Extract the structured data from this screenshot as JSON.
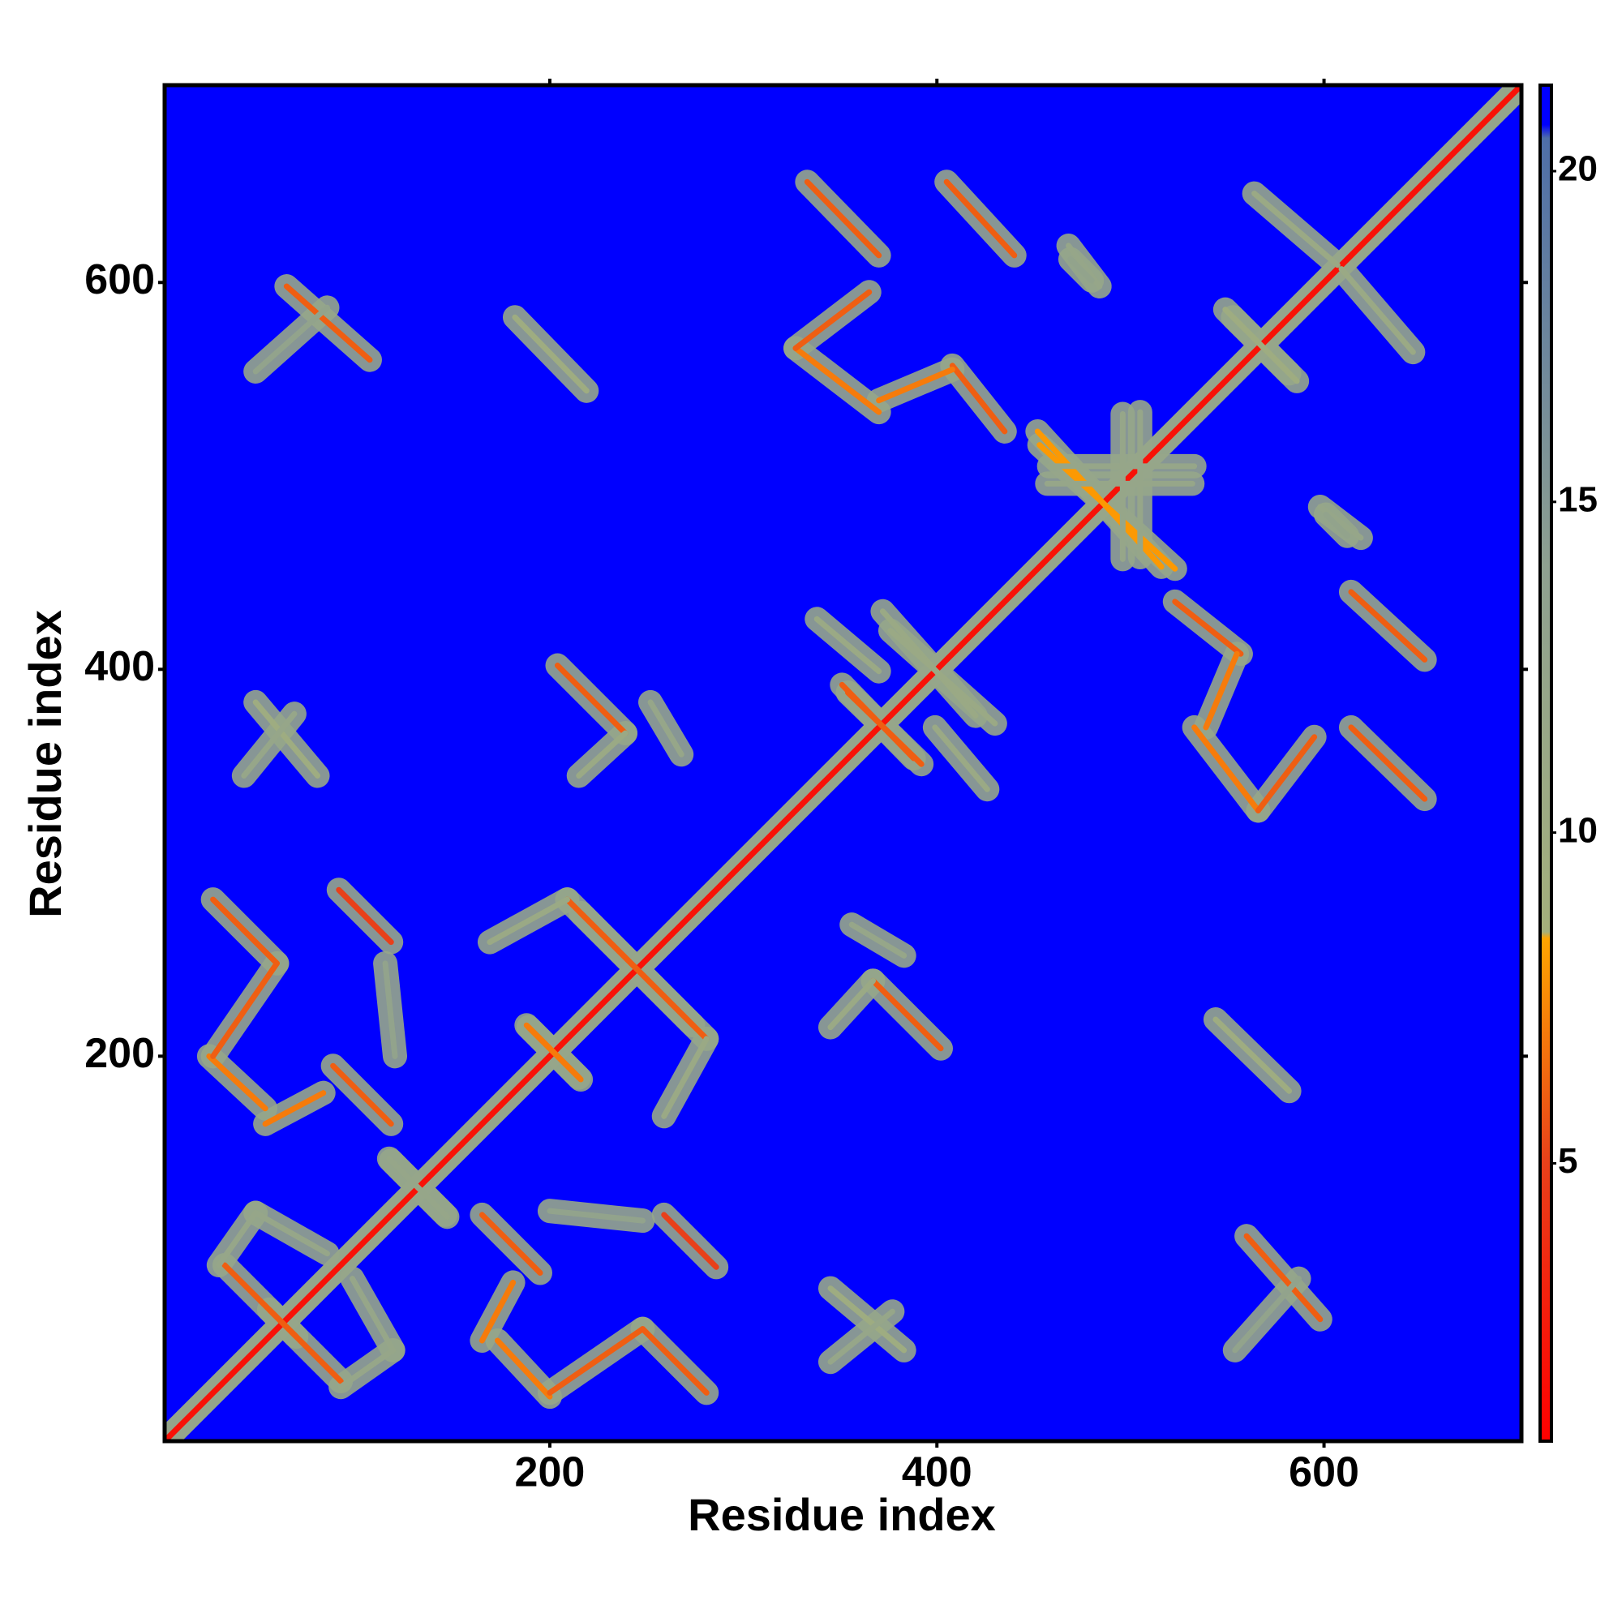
{
  "chart_data": {
    "type": "contact_map",
    "x_label": "Residue index",
    "y_label": "Residue index",
    "xlim": [
      1,
      702
    ],
    "ylim": [
      1,
      702
    ],
    "xticks": [
      200,
      400,
      600
    ],
    "yticks": [
      200,
      400,
      600
    ],
    "clim": [
      0.8,
      21.3
    ],
    "cticks": [
      5,
      10,
      15,
      20
    ],
    "colorscale": [
      [
        0.8,
        "#ff0000"
      ],
      [
        5,
        "#e8401a"
      ],
      [
        8.4,
        "#ffa500"
      ],
      [
        8.5,
        "#a4b07c"
      ],
      [
        14,
        "#8ea090"
      ],
      [
        20.5,
        "#4e6ea8"
      ],
      [
        20.7,
        "#0000ff"
      ],
      [
        21.3,
        "#0000ff"
      ]
    ],
    "symmetric": true,
    "edge_value": 12,
    "contacts": [
      {
        "x": [
          1,
          702
        ],
        "y": [
          1,
          702
        ],
        "value": 2
      },
      {
        "x": [
          165,
          195
        ],
        "y": [
          118,
          88
        ],
        "value": 6
      },
      {
        "x": [
          181,
          165
        ],
        "y": [
          83,
          53
        ],
        "value": 7
      },
      {
        "x": [
          173,
          200
        ],
        "y": [
          53,
          24
        ],
        "value": 7
      },
      {
        "x": [
          200,
          248
        ],
        "y": [
          26,
          59
        ],
        "value": 6
      },
      {
        "x": [
          248,
          281
        ],
        "y": [
          59,
          26
        ],
        "value": 6
      },
      {
        "x": [
          259,
          286
        ],
        "y": [
          118,
          91
        ],
        "value": 5
      },
      {
        "x": [
          200,
          248
        ],
        "y": [
          120,
          115
        ],
        "value": 13
      },
      {
        "x": [
          345,
          383
        ],
        "y": [
          80,
          48
        ],
        "value": 10
      },
      {
        "x": [
          345,
          377
        ],
        "y": [
          42,
          68
        ],
        "value": 12
      },
      {
        "x": [
          55,
          92
        ],
        "y": [
          69,
          32
        ],
        "value": 6
      },
      {
        "x": [
          98,
          119
        ],
        "y": [
          85,
          48
        ],
        "value": 12
      },
      {
        "x": [
          92,
          119
        ],
        "y": [
          29,
          48
        ],
        "value": 12
      },
      {
        "x": [
          117,
          146
        ],
        "y": [
          147,
          118
        ],
        "value": 12
      },
      {
        "x": [
          216,
          281
        ],
        "y": [
          274,
          209
        ],
        "value": 6
      },
      {
        "x": [
          281,
          259
        ],
        "y": [
          209,
          169
        ],
        "value": 11
      },
      {
        "x": [
          189,
          216
        ],
        "y": [
          215,
          188
        ],
        "value": 7
      },
      {
        "x": [
          367,
          402
        ],
        "y": [
          239,
          204
        ],
        "value": 6
      },
      {
        "x": [
          356,
          383
        ],
        "y": [
          268,
          252
        ],
        "value": 12
      },
      {
        "x": [
          345,
          367
        ],
        "y": [
          215,
          239
        ],
        "value": 11
      },
      {
        "x": [
          351,
          388
        ],
        "y": [
          392,
          354
        ],
        "value": 6
      },
      {
        "x": [
          399,
          426
        ],
        "y": [
          370,
          338
        ],
        "value": 11
      },
      {
        "x": [
          372,
          420
        ],
        "y": [
          430,
          376
        ],
        "value": 11
      },
      {
        "x": [
          544,
          582
        ],
        "y": [
          219,
          182
        ],
        "value": 10
      },
      {
        "x": [
          560,
          598
        ],
        "y": [
          107,
          64
        ],
        "value": 6
      },
      {
        "x": [
          554,
          587
        ],
        "y": [
          48,
          85
        ],
        "value": 13
      },
      {
        "x": [
          523,
          557
        ],
        "y": [
          435,
          408
        ],
        "value": 6
      },
      {
        "x": [
          555,
          539
        ],
        "y": [
          408,
          370
        ],
        "value": 7
      },
      {
        "x": [
          533,
          566
        ],
        "y": [
          370,
          327
        ],
        "value": 7
      },
      {
        "x": [
          566,
          595
        ],
        "y": [
          327,
          365
        ],
        "value": 6
      },
      {
        "x": [
          614,
          652
        ],
        "y": [
          440,
          405
        ],
        "value": 6
      },
      {
        "x": [
          614,
          652
        ],
        "y": [
          370,
          333
        ],
        "value": 6
      },
      {
        "x": [
          453,
          523
        ],
        "y": [
          516,
          452
        ],
        "value": 8
      },
      {
        "x": [
          458,
          533
        ],
        "y": [
          505,
          505
        ],
        "value": 12
      },
      {
        "x": [
          496,
          496
        ],
        "y": [
          532,
          457
        ],
        "value": 12
      },
      {
        "x": [
          598,
          619
        ],
        "y": [
          484,
          468
        ],
        "value": 12
      },
      {
        "x": [
          469,
          480
        ],
        "y": [
          612,
          601
        ],
        "value": 13
      },
      {
        "x": [
          609,
          646
        ],
        "y": [
          607,
          564
        ],
        "value": 11
      },
      {
        "x": [
          549,
          582
        ],
        "y": [
          586,
          553
        ],
        "value": 10
      }
    ]
  }
}
